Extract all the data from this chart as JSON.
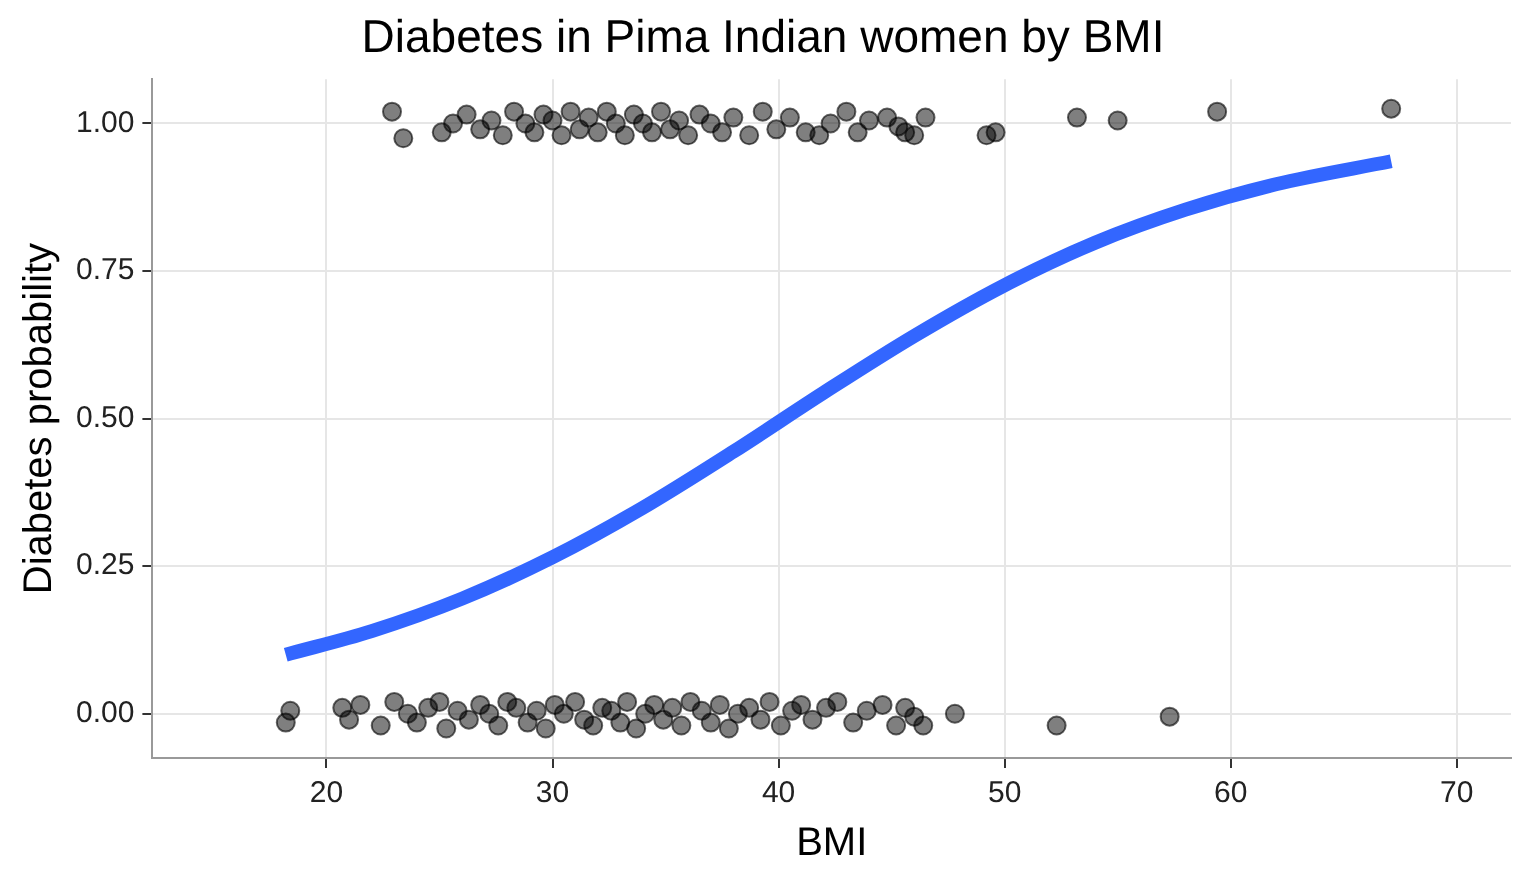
{
  "chart_data": {
    "type": "scatter",
    "title": "Diabetes in Pima Indian women by BMI",
    "xlabel": "BMI",
    "ylabel": "Diabetes probability",
    "xlim": [
      12.3,
      72.4
    ],
    "xticks": [
      20,
      30,
      40,
      50,
      60,
      70
    ],
    "ylim": [
      -0.075,
      1.075
    ],
    "yticks": [
      {
        "value": 0,
        "label": "0.00"
      },
      {
        "value": 0.25,
        "label": "0.25"
      },
      {
        "value": 0.5,
        "label": "0.50"
      },
      {
        "value": 0.75,
        "label": "0.75"
      },
      {
        "value": 1,
        "label": "1.00"
      }
    ],
    "grid": true,
    "legend": false,
    "series": [
      {
        "marker": "circle",
        "color": "#000000",
        "x": [
          18.2,
          18.4,
          20.7,
          21.0,
          21.5,
          22.4,
          23.0,
          23.6,
          24.0,
          24.5,
          25.0,
          25.3,
          25.8,
          26.3,
          26.8,
          27.2,
          27.6,
          28.0,
          28.4,
          28.9,
          29.3,
          29.7,
          30.1,
          30.5,
          31.0,
          31.4,
          31.8,
          32.2,
          32.6,
          33.0,
          33.3,
          33.7,
          34.1,
          34.5,
          34.9,
          35.3,
          35.7,
          36.1,
          36.6,
          37.0,
          37.4,
          37.8,
          38.2,
          38.7,
          39.2,
          39.6,
          40.1,
          40.6,
          41.0,
          41.5,
          42.1,
          42.6,
          43.3,
          43.9,
          44.6,
          45.2,
          45.6,
          46.0,
          46.4,
          47.8,
          52.3,
          57.3
        ],
        "values": [
          -0.015,
          0.005,
          0.01,
          -0.01,
          0.015,
          -0.02,
          0.02,
          0.0,
          -0.015,
          0.01,
          0.02,
          -0.025,
          0.005,
          -0.01,
          0.015,
          0.0,
          -0.02,
          0.02,
          0.01,
          -0.015,
          0.005,
          -0.025,
          0.015,
          0.0,
          0.02,
          -0.01,
          -0.02,
          0.01,
          0.005,
          -0.015,
          0.02,
          -0.025,
          0.0,
          0.015,
          -0.01,
          0.01,
          -0.02,
          0.02,
          0.005,
          -0.015,
          0.015,
          -0.025,
          0.0,
          0.01,
          -0.01,
          0.02,
          -0.02,
          0.005,
          0.015,
          -0.01,
          0.01,
          0.02,
          -0.015,
          0.005,
          0.015,
          -0.02,
          0.01,
          -0.005,
          -0.02,
          0.0,
          -0.02,
          -0.005
        ]
      },
      {
        "marker": "circle",
        "color": "#000000",
        "x": [
          22.9,
          23.4,
          25.1,
          25.6,
          26.2,
          26.8,
          27.3,
          27.8,
          28.3,
          28.8,
          29.2,
          29.6,
          30.0,
          30.4,
          30.8,
          31.2,
          31.6,
          32.0,
          32.4,
          32.8,
          33.2,
          33.6,
          34.0,
          34.4,
          34.8,
          35.2,
          35.6,
          36.0,
          36.5,
          37.0,
          37.5,
          38.0,
          38.7,
          39.3,
          39.9,
          40.5,
          41.2,
          41.8,
          42.3,
          43.0,
          43.5,
          44.0,
          44.8,
          45.3,
          45.6,
          46.0,
          46.5,
          49.2,
          49.6,
          53.2,
          55.0,
          59.4,
          67.1
        ],
        "values": [
          1.02,
          0.975,
          0.985,
          1.0,
          1.015,
          0.99,
          1.005,
          0.98,
          1.02,
          1.0,
          0.985,
          1.015,
          1.005,
          0.98,
          1.02,
          0.99,
          1.01,
          0.985,
          1.02,
          1.0,
          0.98,
          1.015,
          1.0,
          0.985,
          1.02,
          0.99,
          1.005,
          0.98,
          1.015,
          1.0,
          0.985,
          1.01,
          0.98,
          1.02,
          0.99,
          1.01,
          0.985,
          0.98,
          1.0,
          1.02,
          0.985,
          1.005,
          1.01,
          0.995,
          0.985,
          0.98,
          1.01,
          0.98,
          0.985,
          1.01,
          1.005,
          1.02,
          1.025
        ]
      },
      {
        "type": "line",
        "color": "#3366ff",
        "x": [
          18.2,
          22,
          26,
          30,
          34,
          38,
          42,
          46,
          50,
          54,
          58,
          62,
          67.1
        ],
        "values": [
          0.1,
          0.14,
          0.195,
          0.265,
          0.349,
          0.444,
          0.544,
          0.64,
          0.726,
          0.798,
          0.854,
          0.897,
          0.936
        ]
      }
    ]
  }
}
